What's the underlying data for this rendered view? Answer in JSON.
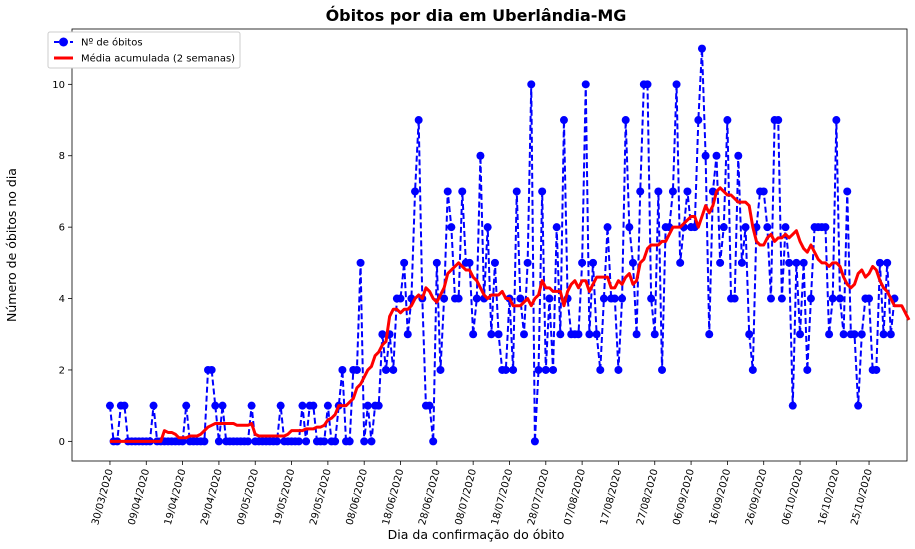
{
  "chart_data": {
    "type": "line",
    "title": "Óbitos por dia em Uberlândia-MG",
    "xlabel": "Dia da confirmação do óbito",
    "ylabel": "Número de óbitos no dia",
    "ylim": [
      -0.55,
      11.55
    ],
    "yticks": [
      0,
      2,
      4,
      6,
      8,
      10
    ],
    "legend_position": "top-left",
    "grid": false,
    "x_start": "30/03/2020",
    "x_end": "25/10/2020",
    "xticks": [
      "30/03/2020",
      "09/04/2020",
      "19/04/2020",
      "29/04/2020",
      "09/05/2020",
      "19/05/2020",
      "29/05/2020",
      "08/06/2020",
      "18/06/2020",
      "28/06/2020",
      "08/07/2020",
      "18/07/2020",
      "28/07/2020",
      "07/08/2020",
      "17/08/2020",
      "27/08/2020",
      "06/09/2020",
      "16/09/2020",
      "26/09/2020",
      "06/10/2020",
      "16/10/2020",
      "25/10/2020"
    ],
    "series": [
      {
        "name": "Nº de óbitos",
        "color": "#0000ff",
        "style": "dashed-with-markers",
        "values": [
          1,
          0,
          0,
          1,
          1,
          0,
          0,
          0,
          0,
          0,
          0,
          0,
          1,
          0,
          0,
          0,
          0,
          0,
          0,
          0,
          0,
          1,
          0,
          0,
          0,
          0,
          0,
          2,
          2,
          1,
          0,
          1,
          0,
          0,
          0,
          0,
          0,
          0,
          0,
          1,
          0,
          0,
          0,
          0,
          0,
          0,
          0,
          1,
          0,
          0,
          0,
          0,
          0,
          1,
          0,
          1,
          1,
          0,
          0,
          0,
          1,
          0,
          0,
          1,
          2,
          0,
          0,
          2,
          2,
          5,
          0,
          1,
          0,
          1,
          1,
          3,
          2,
          3,
          2,
          4,
          4,
          5,
          3,
          4,
          7,
          9,
          4,
          1,
          1,
          0,
          5,
          2,
          4,
          7,
          6,
          4,
          4,
          7,
          5,
          5,
          3,
          4,
          8,
          4,
          6,
          3,
          5,
          3,
          2,
          2,
          4,
          2,
          7,
          4,
          3,
          5,
          10,
          0,
          2,
          7,
          2,
          4,
          2,
          6,
          3,
          9,
          4,
          3,
          3,
          3,
          5,
          10,
          3,
          5,
          3,
          2,
          4,
          6,
          4,
          4,
          2,
          4,
          9,
          6,
          5,
          3,
          7,
          10,
          10,
          4,
          3,
          7,
          2,
          6,
          6,
          7,
          10,
          5,
          6,
          7,
          6,
          6,
          9,
          11,
          8,
          3,
          7,
          8,
          5,
          6,
          9,
          4,
          4,
          8,
          5,
          6,
          3,
          2,
          6,
          7,
          7,
          6,
          4,
          9,
          9,
          4,
          6,
          5,
          1,
          5,
          3,
          5,
          2,
          4,
          6,
          6,
          6,
          6,
          3,
          4,
          9,
          4,
          3,
          7,
          3,
          3,
          1,
          3,
          4,
          4,
          2,
          2,
          5,
          3,
          5,
          3,
          4
        ]
      },
      {
        "name": "Média acumulada (2 semanas)",
        "color": "#ff0000",
        "style": "solid",
        "values": [
          0,
          0,
          0,
          0,
          0,
          0,
          0,
          0,
          0,
          0,
          0,
          0,
          0,
          0,
          0,
          0.3,
          0.25,
          0.25,
          0.2,
          0.1,
          0.1,
          0.1,
          0.15,
          0.15,
          0.15,
          0.2,
          0.3,
          0.4,
          0.45,
          0.5,
          0.5,
          0.5,
          0.5,
          0.5,
          0.5,
          0.45,
          0.45,
          0.45,
          0.45,
          0.5,
          0.2,
          0.15,
          0.15,
          0.15,
          0.15,
          0.15,
          0.15,
          0.15,
          0.15,
          0.2,
          0.3,
          0.3,
          0.3,
          0.3,
          0.35,
          0.35,
          0.35,
          0.4,
          0.4,
          0.45,
          0.6,
          0.65,
          0.75,
          1.0,
          1.0,
          1.0,
          1.1,
          1.2,
          1.5,
          1.6,
          1.8,
          2.0,
          2.1,
          2.4,
          2.5,
          2.7,
          2.8,
          3.5,
          3.7,
          3.7,
          3.6,
          3.7,
          3.7,
          3.8,
          4.0,
          4.1,
          4.0,
          4.3,
          4.2,
          4.0,
          3.9,
          4.1,
          4.3,
          4.7,
          4.8,
          4.9,
          5.0,
          4.9,
          4.8,
          4.8,
          4.6,
          4.5,
          4.3,
          4.1,
          4.0,
          4.1,
          4.1,
          4.1,
          4.2,
          4.0,
          4.0,
          3.8,
          3.8,
          3.8,
          3.9,
          4.0,
          3.8,
          4.0,
          4.1,
          4.5,
          4.3,
          4.3,
          4.2,
          4.2,
          4.2,
          3.8,
          4.2,
          4.4,
          4.5,
          4.3,
          4.5,
          4.5,
          4.2,
          4.4,
          4.6,
          4.6,
          4.6,
          4.6,
          4.3,
          4.3,
          4.5,
          4.4,
          4.6,
          4.7,
          4.4,
          4.5,
          5.0,
          5.1,
          5.4,
          5.5,
          5.5,
          5.5,
          5.6,
          5.6,
          5.8,
          6.0,
          6.0,
          6.0,
          6.1,
          6.2,
          6.3,
          6.3,
          6.0,
          6.3,
          6.6,
          6.4,
          6.6,
          7.0,
          7.1,
          7.0,
          6.9,
          6.9,
          6.8,
          6.7,
          6.7,
          6.7,
          6.6,
          6.0,
          5.6,
          5.5,
          5.5,
          5.7,
          5.8,
          5.6,
          5.7,
          5.7,
          5.8,
          5.7,
          5.8,
          5.9,
          5.6,
          5.4,
          5.3,
          5.5,
          5.3,
          5.1,
          5.0,
          5.0,
          4.9,
          5.0,
          5.0,
          4.9,
          4.6,
          4.4,
          4.3,
          4.4,
          4.7,
          4.8,
          4.6,
          4.7,
          4.9,
          4.8,
          4.5,
          4.3,
          4.2,
          4.0,
          3.8,
          3.8,
          3.8,
          3.6,
          3.4
        ]
      }
    ]
  }
}
